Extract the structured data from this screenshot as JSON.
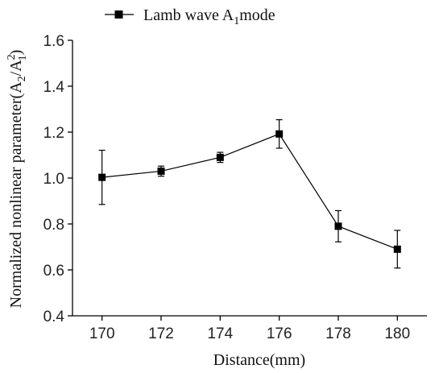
{
  "chart_data": {
    "type": "line",
    "title": "",
    "xlabel": "Distance(mm)",
    "ylabel": {
      "text": "Normalized nonlinear parameter(A",
      "sub1": "2",
      "slash": "/A",
      "sup": "2",
      "sub2": "1",
      "close": ")"
    },
    "xlim": [
      169,
      181
    ],
    "ylim": [
      0.4,
      1.6
    ],
    "x_ticks": [
      170,
      172,
      174,
      176,
      178,
      180
    ],
    "y_ticks": [
      "0.4",
      "0.6",
      "0.8",
      "1.0",
      "1.2",
      "1.4",
      "1.6"
    ],
    "series": [
      {
        "name": {
          "text": "Lamb wave A",
          "sub": "1",
          "rest": "mode"
        },
        "x": [
          170,
          172,
          174,
          176,
          178,
          180
        ],
        "y": [
          1.003,
          1.03,
          1.09,
          1.192,
          0.79,
          0.69
        ],
        "error": [
          0.118,
          0.022,
          0.022,
          0.062,
          0.068,
          0.082
        ]
      }
    ],
    "legend_position": "top-center",
    "grid": false,
    "colors": {
      "line": "#000000",
      "marker": "#000000"
    }
  }
}
